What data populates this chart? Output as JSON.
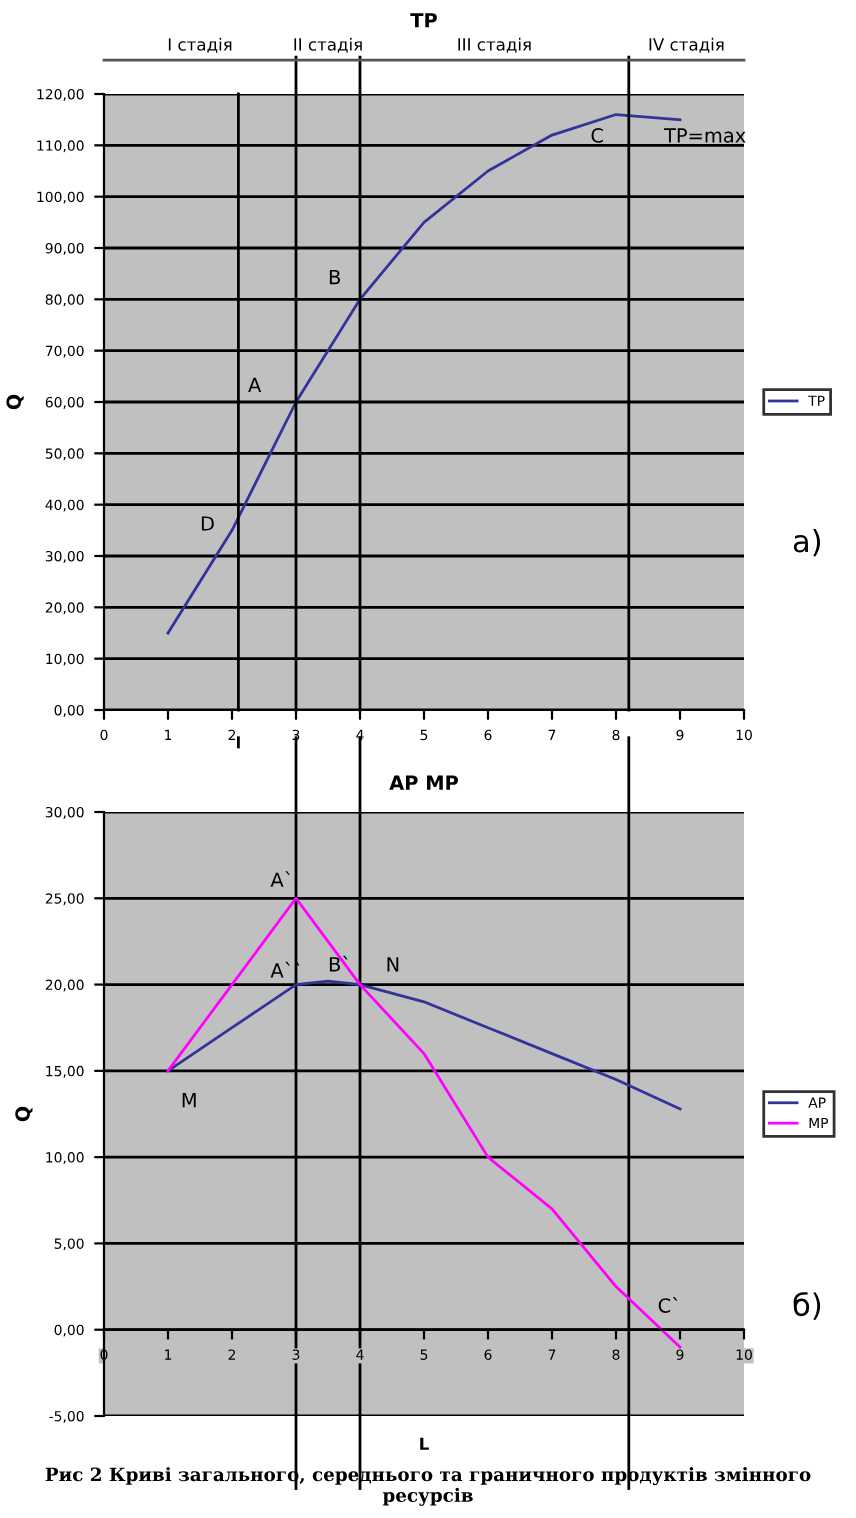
{
  "chart_data": [
    {
      "type": "line",
      "title": "TP",
      "ylabel": "Q",
      "x": [
        1,
        2,
        3,
        4,
        5,
        6,
        7,
        8,
        9
      ],
      "series": [
        {
          "name": "TP",
          "color": "#333399",
          "values": [
            15,
            35,
            60,
            80,
            95,
            105,
            112,
            116,
            115
          ]
        }
      ],
      "xlim": [
        0,
        10
      ],
      "xticks": [
        0,
        1,
        2,
        3,
        4,
        5,
        6,
        7,
        8,
        9,
        10
      ],
      "ylim": [
        0,
        120
      ],
      "yticks": [
        {
          "value": 0,
          "label": "0,00"
        },
        {
          "value": 10,
          "label": "10,00"
        },
        {
          "value": 20,
          "label": "20,00"
        },
        {
          "value": 30,
          "label": "30,00"
        },
        {
          "value": 40,
          "label": "40,00"
        },
        {
          "value": 50,
          "label": "50,00"
        },
        {
          "value": 60,
          "label": "60,00"
        },
        {
          "value": 70,
          "label": "70,00"
        },
        {
          "value": 80,
          "label": "80,00"
        },
        {
          "value": 90,
          "label": "90,00"
        },
        {
          "value": 100,
          "label": "100,00"
        },
        {
          "value": 110,
          "label": "110,00"
        },
        {
          "value": 120,
          "label": "120,00"
        }
      ],
      "grid": "y",
      "legend": "right",
      "marker": "none",
      "line_style": "solid",
      "ref_lines": [
        {
          "axis": "x",
          "value": 2.1,
          "color": "#000000"
        },
        {
          "axis": "x",
          "value": 3,
          "color": "#000000"
        },
        {
          "axis": "x",
          "value": 4,
          "color": "#000000"
        },
        {
          "axis": "x",
          "value": 8.2,
          "color": "#000000"
        }
      ],
      "annotations": [
        "I стадія",
        "II стадія",
        "III стадія",
        "IV стадія",
        "A",
        "B",
        "C",
        "TP=max",
        "D",
        "а)"
      ]
    },
    {
      "type": "line",
      "title": "AP MP",
      "xlabel": "L",
      "ylabel": "Q",
      "x": [
        1,
        2,
        3,
        3.5,
        4,
        5,
        6,
        7,
        8,
        9
      ],
      "series": [
        {
          "name": "AP",
          "color": "#333399",
          "values": [
            15,
            17.5,
            20,
            20.2,
            20,
            19,
            17.5,
            16,
            14.5,
            12.8
          ]
        },
        {
          "name": "MP",
          "color": "#ff00ff",
          "values": [
            15,
            20,
            25,
            22.5,
            20,
            16,
            10,
            7,
            2.5,
            -1
          ]
        }
      ],
      "xlim": [
        0,
        10
      ],
      "xticks": [
        0,
        1,
        2,
        3,
        4,
        5,
        6,
        7,
        8,
        9,
        10
      ],
      "ylim": [
        -5,
        30
      ],
      "yticks": [
        {
          "value": -5,
          "label": "-5,00"
        },
        {
          "value": 0,
          "label": "0,00"
        },
        {
          "value": 5,
          "label": "5,00"
        },
        {
          "value": 10,
          "label": "10,00"
        },
        {
          "value": 15,
          "label": "15,00"
        },
        {
          "value": 20,
          "label": "20,00"
        },
        {
          "value": 25,
          "label": "25,00"
        },
        {
          "value": 30,
          "label": "30,00"
        }
      ],
      "grid": "y",
      "legend": "right",
      "marker": "none",
      "line_style": "solid",
      "ref_lines": [
        {
          "axis": "x",
          "value": 3,
          "color": "#000000"
        },
        {
          "axis": "x",
          "value": 4,
          "color": "#000000"
        },
        {
          "axis": "x",
          "value": 8.2,
          "color": "#000000"
        }
      ],
      "annotations": [
        "A`",
        "A``",
        "B`",
        "N",
        "M",
        "C`",
        "б)",
        "Рис 2 Криві загального, середнього та граничного продуктів змінного ресурсів"
      ]
    }
  ]
}
